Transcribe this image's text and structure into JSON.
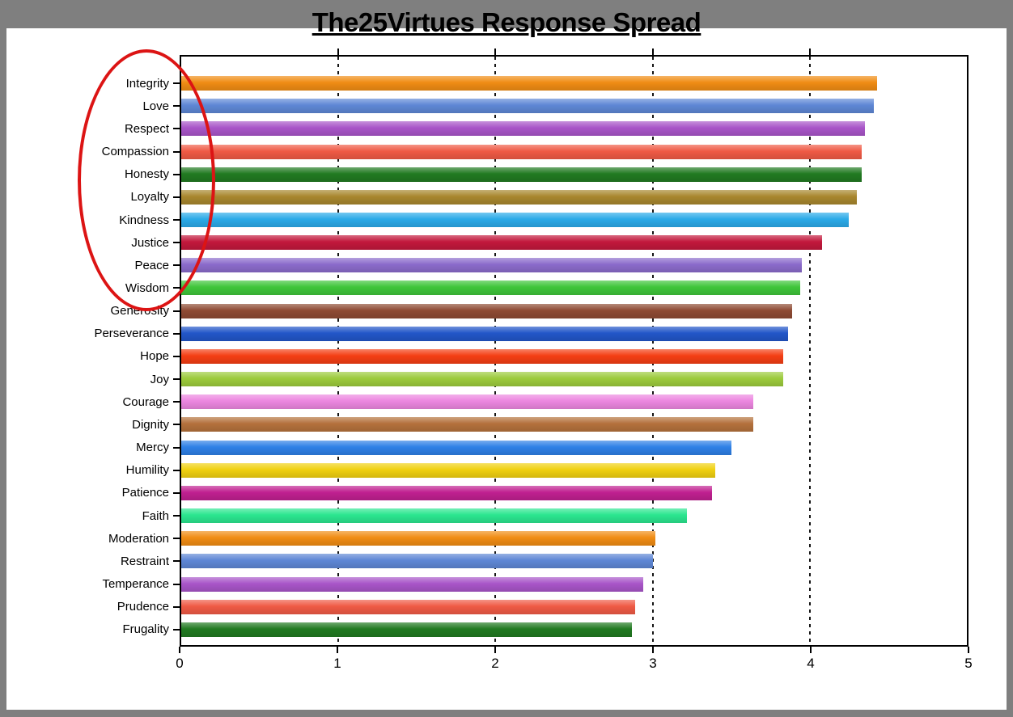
{
  "window": {
    "titlebar_color": "#7F7F7F",
    "frame_color": "#7F7F7F"
  },
  "chart_data": {
    "type": "bar",
    "orientation": "horizontal",
    "title": "The25Virtues Response Spread",
    "xlabel": "",
    "ylabel": "",
    "xlim": [
      0,
      5
    ],
    "x_ticks": [
      0,
      1,
      2,
      3,
      4,
      5
    ],
    "gridline_ticks": [
      1,
      2,
      3,
      4
    ],
    "grid": "dashed vertical gridlines",
    "legend": "none",
    "categories": [
      "Integrity",
      "Love",
      "Respect",
      "Compassion",
      "Honesty",
      "Loyalty",
      "Kindness",
      "Justice",
      "Peace",
      "Wisdom",
      "Generosity",
      "Perseverance",
      "Hope",
      "Joy",
      "Courage",
      "Dignity",
      "Mercy",
      "Humility",
      "Patience",
      "Faith",
      "Moderation",
      "Restraint",
      "Temperance",
      "Prudence",
      "Frugality"
    ],
    "values": [
      4.43,
      4.41,
      4.35,
      4.33,
      4.33,
      4.3,
      4.25,
      4.08,
      3.95,
      3.94,
      3.89,
      3.86,
      3.83,
      3.83,
      3.64,
      3.64,
      3.5,
      3.4,
      3.38,
      3.22,
      3.02,
      3.0,
      2.94,
      2.89,
      2.87
    ],
    "bar_colors": [
      "#F08C14",
      "#5E87D5",
      "#A855C8",
      "#EF5A45",
      "#217A21",
      "#A8872E",
      "#2BAAE8",
      "#C2183C",
      "#8B6BCB",
      "#3FC53A",
      "#8E4A33",
      "#2256C8",
      "#F43E14",
      "#9CCB3C",
      "#EC86E0",
      "#B4713C",
      "#2E80E6",
      "#F0D010",
      "#C02090",
      "#2BE68F",
      "#F08C14",
      "#5E87D5",
      "#A855C8",
      "#EF5A45",
      "#217A21"
    ],
    "annotations": [
      {
        "type": "ellipse",
        "color": "#DC1414",
        "note": "red ellipse circling the top virtue labels from Integrity down to Wisdom"
      }
    ]
  }
}
